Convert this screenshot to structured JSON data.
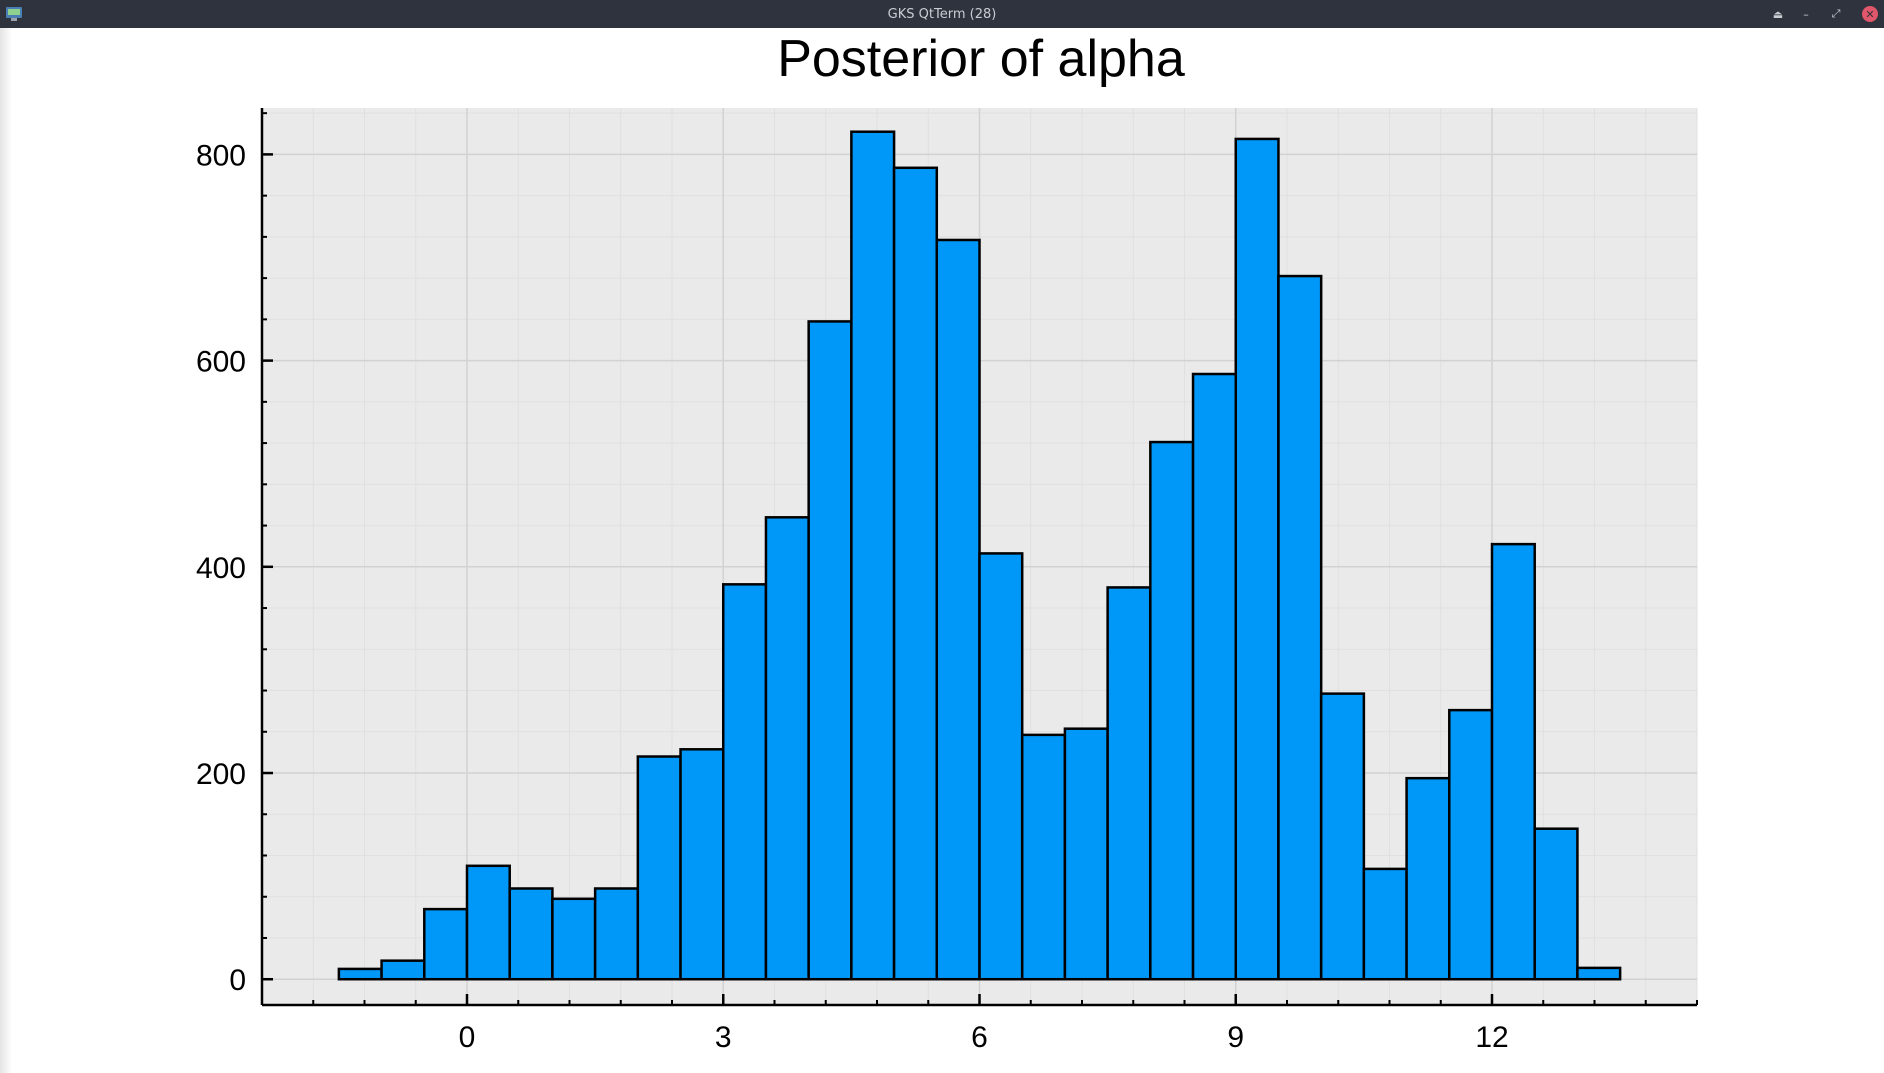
{
  "window": {
    "title": "GKS QtTerm (28)",
    "controls": {
      "shade": "⏏",
      "minimize": "–",
      "maximize": "⤢",
      "close": "✕"
    }
  },
  "chart_data": {
    "type": "bar",
    "title": "Posterior of alpha",
    "xlabel": "",
    "ylabel": "",
    "bin_width": 0.5,
    "bins": [
      {
        "x0": -1.5,
        "x1": -1.0,
        "count": 10
      },
      {
        "x0": -1.0,
        "x1": -0.5,
        "count": 18
      },
      {
        "x0": -0.5,
        "x1": 0.0,
        "count": 68
      },
      {
        "x0": 0.0,
        "x1": 0.5,
        "count": 110
      },
      {
        "x0": 0.5,
        "x1": 1.0,
        "count": 88
      },
      {
        "x0": 1.0,
        "x1": 1.5,
        "count": 78
      },
      {
        "x0": 1.5,
        "x1": 2.0,
        "count": 88
      },
      {
        "x0": 2.0,
        "x1": 2.5,
        "count": 216
      },
      {
        "x0": 2.5,
        "x1": 3.0,
        "count": 223
      },
      {
        "x0": 3.0,
        "x1": 3.5,
        "count": 383
      },
      {
        "x0": 3.5,
        "x1": 4.0,
        "count": 448
      },
      {
        "x0": 4.0,
        "x1": 4.5,
        "count": 638
      },
      {
        "x0": 4.5,
        "x1": 5.0,
        "count": 822
      },
      {
        "x0": 5.0,
        "x1": 5.5,
        "count": 787
      },
      {
        "x0": 5.5,
        "x1": 6.0,
        "count": 717
      },
      {
        "x0": 6.0,
        "x1": 6.5,
        "count": 413
      },
      {
        "x0": 6.5,
        "x1": 7.0,
        "count": 237
      },
      {
        "x0": 7.0,
        "x1": 7.5,
        "count": 243
      },
      {
        "x0": 7.5,
        "x1": 8.0,
        "count": 380
      },
      {
        "x0": 8.0,
        "x1": 8.5,
        "count": 521
      },
      {
        "x0": 8.5,
        "x1": 9.0,
        "count": 587
      },
      {
        "x0": 9.0,
        "x1": 9.5,
        "count": 815
      },
      {
        "x0": 9.5,
        "x1": 10.0,
        "count": 682
      },
      {
        "x0": 10.0,
        "x1": 10.5,
        "count": 277
      },
      {
        "x0": 10.5,
        "x1": 11.0,
        "count": 107
      },
      {
        "x0": 11.0,
        "x1": 11.5,
        "count": 195
      },
      {
        "x0": 11.5,
        "x1": 12.0,
        "count": 261
      },
      {
        "x0": 12.0,
        "x1": 12.5,
        "count": 422
      },
      {
        "x0": 12.5,
        "x1": 13.0,
        "count": 146
      },
      {
        "x0": 13.0,
        "x1": 13.5,
        "count": 11
      }
    ],
    "xlim": [
      -2.4,
      14.4
    ],
    "ylim": [
      -25,
      845
    ],
    "xticks": [
      0,
      3,
      6,
      9,
      12
    ],
    "xtick_labels": [
      "0",
      "3",
      "6",
      "9",
      "12"
    ],
    "yticks": [
      0,
      200,
      400,
      600,
      800
    ],
    "ytick_labels": [
      "0",
      "200",
      "400",
      "600",
      "800"
    ],
    "x_minor_step": 0.6,
    "y_minor_step": 40,
    "grid": true,
    "legend": "none",
    "colors": {
      "bar_fill": "#0098f8",
      "bar_edge": "#000000",
      "plot_background": "#eaeaea",
      "grid_major": "#d2d2d2",
      "grid_minor": "#e0e0e0",
      "axis": "#000000",
      "text": "#000000"
    }
  }
}
